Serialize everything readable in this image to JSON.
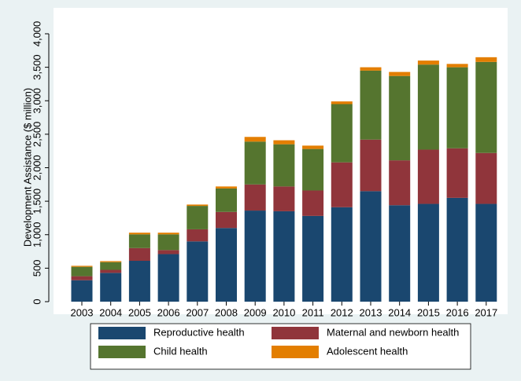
{
  "chart_data": {
    "type": "stacked_bar",
    "y_label": "Development Assistance ($ million)",
    "categories": [
      "2003",
      "2004",
      "2005",
      "2006",
      "2007",
      "2008",
      "2009",
      "2010",
      "2011",
      "2012",
      "2013",
      "2014",
      "2015",
      "2016",
      "2017"
    ],
    "series": [
      {
        "name": "Reproductive health",
        "color": "#1a476f",
        "values": [
          320,
          430,
          610,
          710,
          900,
          1100,
          1360,
          1350,
          1280,
          1410,
          1650,
          1440,
          1460,
          1550,
          1460
        ]
      },
      {
        "name": "Maternal and newborn health",
        "color": "#90353b",
        "values": [
          60,
          45,
          190,
          60,
          180,
          240,
          390,
          370,
          380,
          670,
          770,
          670,
          810,
          740,
          760
        ]
      },
      {
        "name": "Child health",
        "color": "#55752f",
        "values": [
          140,
          115,
          205,
          235,
          350,
          350,
          640,
          630,
          620,
          870,
          1030,
          1260,
          1270,
          1210,
          1360
        ]
      },
      {
        "name": "Adolescent health",
        "color": "#e37e00",
        "values": [
          15,
          15,
          25,
          25,
          20,
          30,
          70,
          60,
          50,
          40,
          50,
          60,
          60,
          50,
          70
        ]
      }
    ],
    "ylim": [
      0,
      4000
    ],
    "yticks": [
      0,
      500,
      {
        "value": 1000,
        "label": "1,000"
      },
      {
        "value": 1500,
        "label": "1,500"
      },
      {
        "value": 2000,
        "label": "2,000"
      },
      {
        "value": 2500,
        "label": "2,500"
      },
      {
        "value": 3000,
        "label": "3,000"
      },
      {
        "value": 3500,
        "label": "3,500"
      },
      {
        "value": 4000,
        "label": "4,000"
      }
    ]
  }
}
